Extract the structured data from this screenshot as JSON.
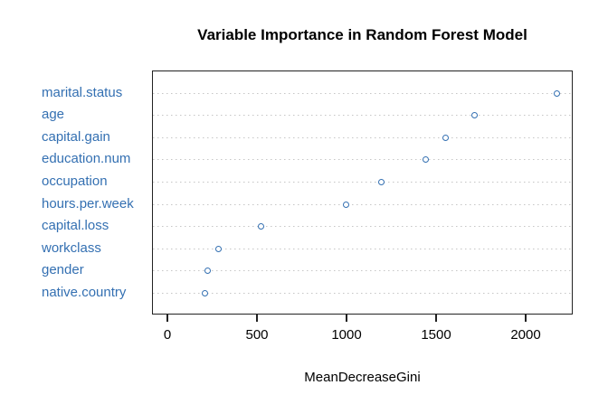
{
  "chart_data": {
    "type": "scatter",
    "subtype": "dotchart",
    "title": "Variable Importance in Random Forest Model",
    "xlabel": "MeanDecreaseGini",
    "ylabel": "",
    "categories": [
      "marital.status",
      "age",
      "capital.gain",
      "education.num",
      "occupation",
      "hours.per.week",
      "capital.loss",
      "workclass",
      "gender",
      "native.country"
    ],
    "values": [
      2170,
      1710,
      1550,
      1435,
      1190,
      990,
      520,
      280,
      220,
      205
    ],
    "x_ticks": [
      0,
      500,
      1000,
      1500,
      2000
    ],
    "xlim": [
      -90,
      2260
    ],
    "grid": "dotted-horizontal",
    "legend": "none",
    "colors": {
      "point": "#3470b2",
      "category_label": "#3470b2",
      "grid": "#c6c6c6",
      "axis": "#222222",
      "title": "#000000",
      "background": "#ffffff"
    }
  }
}
